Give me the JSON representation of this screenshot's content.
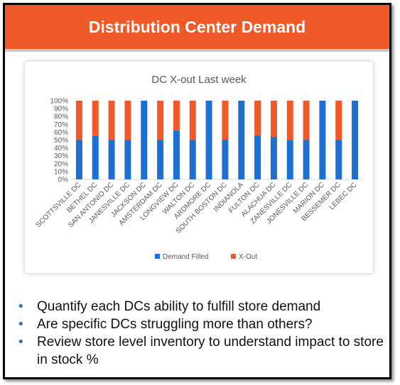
{
  "banner": {
    "title": "Distribution Center Demand"
  },
  "colors": {
    "banner": "#f05a28",
    "filled": "#1f6fd1",
    "xout": "#f05a28",
    "bullet": "#2e75b6"
  },
  "chart_data": {
    "type": "bar",
    "stacked": true,
    "title": "DC X-out Last week",
    "categories": [
      "SCOTTSVILLE DC",
      "BETHEL DC",
      "SAN ANTONIO DC",
      "JANESVILLE DC",
      "JACKSON DC",
      "AMSTERDAM DC",
      "LONGVIEW DC",
      "WALTON DC",
      "ARDMORE DC",
      "SOUTH BOSTON DC",
      "INDIANOLA",
      "FULTON DC",
      "ALACHUA DC",
      "ZANESVILLE DC",
      "JONESVILLE DC",
      "MARION DC",
      "BESSEMER DC",
      "LEBEC DC"
    ],
    "series": [
      {
        "name": "Demand Filled",
        "values": [
          50,
          55,
          50,
          50,
          100,
          50,
          62,
          50,
          100,
          50,
          100,
          56,
          54,
          50,
          50,
          100,
          50,
          100
        ]
      },
      {
        "name": "X-Out",
        "values": [
          50,
          45,
          50,
          50,
          0,
          50,
          38,
          50,
          0,
          50,
          0,
          44,
          46,
          50,
          50,
          0,
          50,
          0
        ]
      }
    ],
    "yticks": [
      "0%",
      "10%",
      "20%",
      "30%",
      "40%",
      "50%",
      "60%",
      "70%",
      "80%",
      "90%",
      "100%"
    ],
    "ylim": [
      0,
      100
    ],
    "legend_position": "bottom",
    "grid": false
  },
  "bullets": [
    "Quantify each DCs ability to fulfill store demand",
    "Are specific DCs struggling more than others?",
    "Review store level inventory to understand impact to store in stock %"
  ]
}
